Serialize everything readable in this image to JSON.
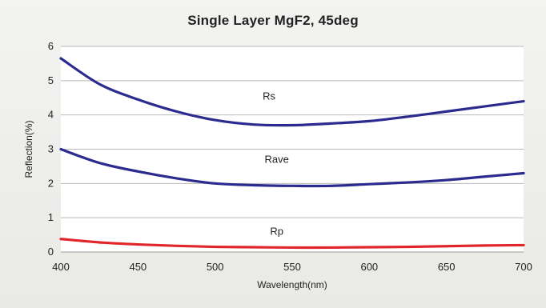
{
  "chart_data": {
    "type": "line",
    "title": "Single Layer MgF2, 45deg",
    "xlabel": "Wavelength(nm)",
    "ylabel": "Reflection(%)",
    "xlim": [
      400,
      700
    ],
    "ylim": [
      0,
      6
    ],
    "xticks": [
      "400",
      "450",
      "500",
      "550",
      "600",
      "650",
      "700"
    ],
    "yticks": [
      "0",
      "1",
      "2",
      "3",
      "4",
      "5",
      "6"
    ],
    "grid": "horizontal",
    "series": [
      {
        "name": "Rs",
        "color": "#2b2a8f",
        "x": [
          400,
          425,
          450,
          475,
          500,
          525,
          550,
          575,
          600,
          625,
          650,
          675,
          700
        ],
        "y": [
          5.65,
          4.9,
          4.45,
          4.1,
          3.85,
          3.72,
          3.7,
          3.75,
          3.82,
          3.95,
          4.1,
          4.25,
          4.4
        ]
      },
      {
        "name": "Rave",
        "color": "#2b2a8f",
        "x": [
          400,
          425,
          450,
          475,
          500,
          525,
          550,
          575,
          600,
          625,
          650,
          675,
          700
        ],
        "y": [
          3.0,
          2.6,
          2.35,
          2.15,
          2.0,
          1.95,
          1.93,
          1.93,
          1.98,
          2.03,
          2.1,
          2.2,
          2.3
        ]
      },
      {
        "name": "Rp",
        "color": "#e1262b",
        "x": [
          400,
          425,
          450,
          475,
          500,
          525,
          550,
          575,
          600,
          625,
          650,
          675,
          700
        ],
        "y": [
          0.38,
          0.28,
          0.22,
          0.18,
          0.15,
          0.14,
          0.13,
          0.13,
          0.14,
          0.15,
          0.17,
          0.19,
          0.2
        ]
      }
    ]
  }
}
